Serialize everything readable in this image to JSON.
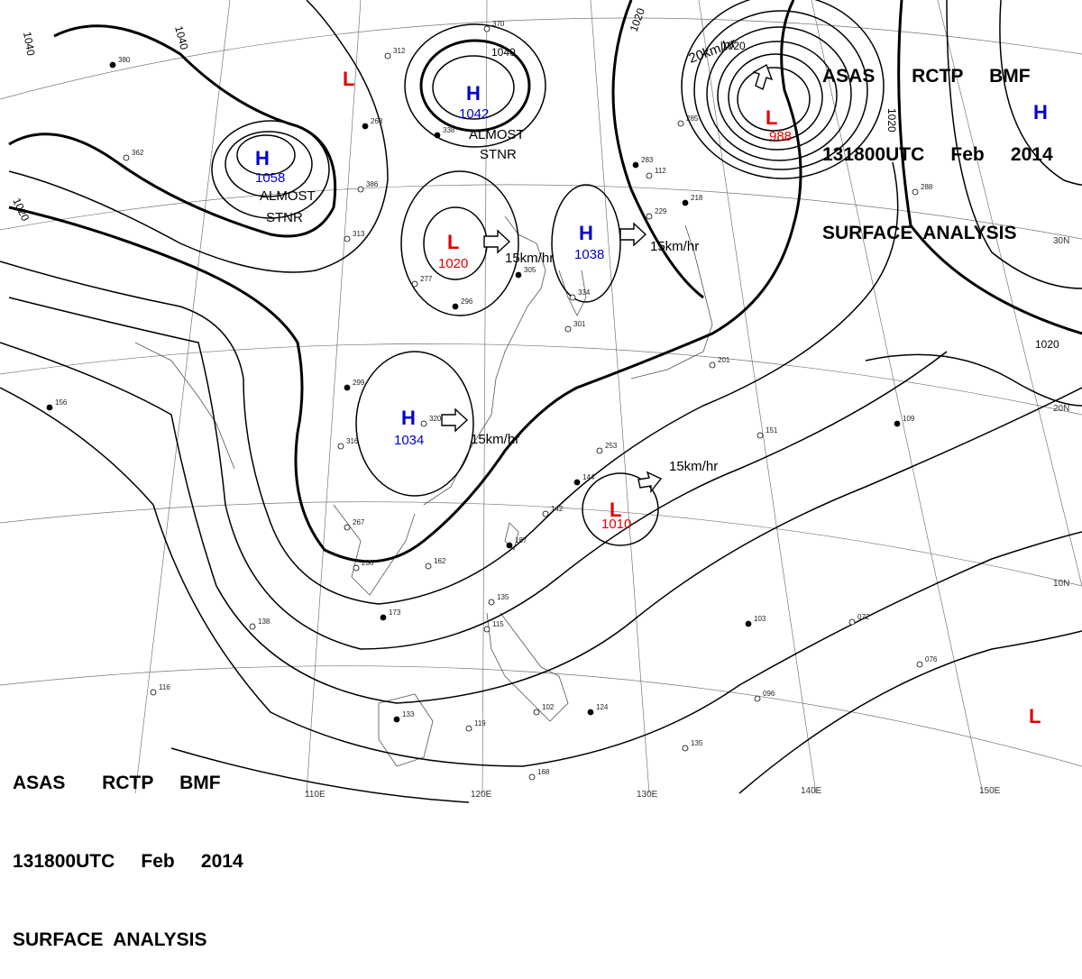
{
  "header": {
    "line1": "ASAS       RCTP     BMF",
    "line2": "131800UTC     Feb     2014",
    "line3": "SURFACE  ANALYSIS"
  },
  "pressure_systems": [
    {
      "type": "H",
      "label": "H",
      "pressure": "1058"
    },
    {
      "type": "H",
      "label": "H",
      "pressure": "1042"
    },
    {
      "type": "H",
      "label": "H",
      "pressure": "1038"
    },
    {
      "type": "H",
      "label": "H",
      "pressure": "1034"
    },
    {
      "type": "H",
      "label": "H",
      "pressure": ""
    },
    {
      "type": "L",
      "label": "L",
      "pressure": ""
    },
    {
      "type": "L",
      "label": "L",
      "pressure": "1020"
    },
    {
      "type": "L",
      "label": "L",
      "pressure": "988"
    },
    {
      "type": "L",
      "label": "L",
      "pressure": "1010"
    },
    {
      "type": "L",
      "label": "L",
      "pressure": ""
    }
  ],
  "notes": {
    "almost1": "ALMOST",
    "stnr1": "STNR",
    "almost2": "ALMOST",
    "stnr2": "STNR"
  },
  "motions": [
    "15km/hr",
    "15km/hr",
    "15km/hr",
    "15km/hr",
    "20km/hr"
  ],
  "isobar_labels": [
    "1040",
    "1040",
    "1040",
    "1020",
    "1020",
    "1020",
    "1020",
    "1020"
  ],
  "longitude_labels": [
    "110E",
    "120E",
    "130E",
    "140E",
    "150E"
  ],
  "latitude_labels": [
    "30N",
    "20N",
    "10N"
  ],
  "station_samples": [
    "380",
    "312",
    "370",
    "268",
    "386",
    "362",
    "338",
    "313",
    "277",
    "296",
    "301",
    "334",
    "305",
    "320",
    "316",
    "299",
    "267",
    "236",
    "173",
    "138",
    "116",
    "156",
    "135",
    "115",
    "133",
    "119",
    "102",
    "124",
    "135",
    "096",
    "103",
    "076",
    "072",
    "109",
    "151",
    "201",
    "218",
    "229",
    "253",
    "144",
    "142",
    "162",
    "187",
    "168",
    "112",
    "283",
    "285",
    "288",
    "211"
  ]
}
